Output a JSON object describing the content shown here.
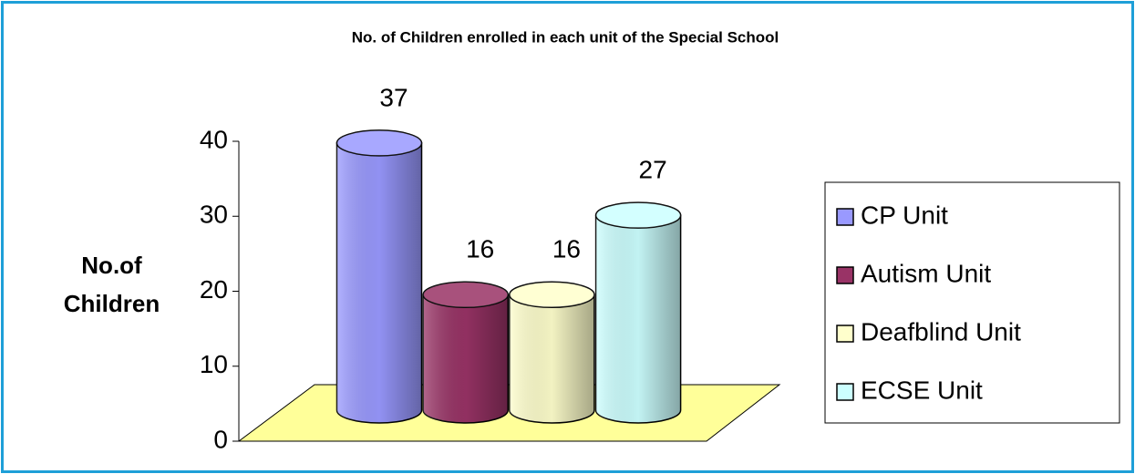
{
  "chart_data": {
    "type": "bar3d",
    "title": "No. of Children enrolled in each unit of the Special School",
    "ylabel": "No.of Children",
    "categories": [
      "CP Unit",
      "Autism Unit",
      "Deafblind Unit",
      "ECSE Unit"
    ],
    "values": [
      37,
      16,
      16,
      27
    ],
    "colors": [
      "#9999ff",
      "#993366",
      "#ffffcc",
      "#ccffff"
    ],
    "ylim": [
      0,
      40
    ],
    "yticks": [
      0,
      10,
      20,
      30,
      40
    ],
    "legend": "right"
  }
}
